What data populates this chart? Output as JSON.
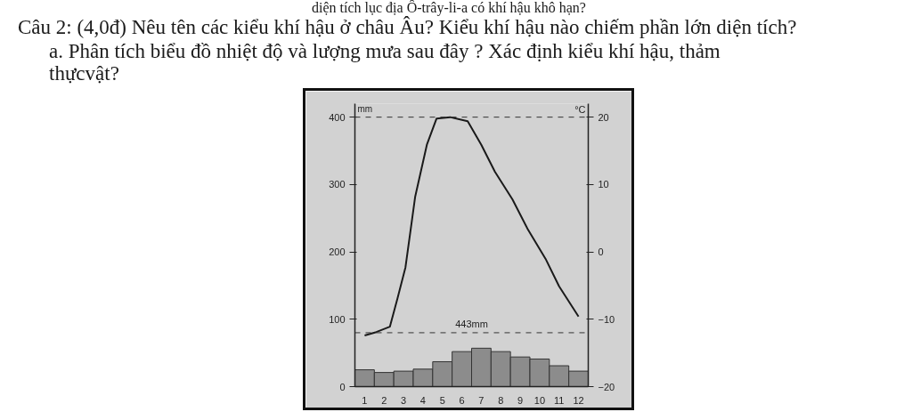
{
  "chart_data": {
    "type": "bar",
    "title": "Câu 2: (4,0đ) Nêu tên các kiểu khí hậu ở châu Âu? Kiểu khí hậu nào chiếm phần lớn diện tích?",
    "subtitle": "a. Phân tích biểu đồ nhiệt độ và lượng mưa sau đây ? Xác định kiểu khí hậu, thảm thựcvật?",
    "annotations": [
      "diện tích lục địa Ô-trây-li-a có khí hậu khô hạn?"
    ],
    "ylabel": "mm",
    "y2label": "°C",
    "x": [
      1,
      2,
      3,
      4,
      5,
      6,
      7,
      8,
      9,
      10,
      11,
      12
    ],
    "xlim": [
      0.5,
      12.5
    ],
    "xticks": [
      1,
      2,
      3,
      4,
      5,
      6,
      7,
      8,
      9,
      10,
      11,
      12
    ],
    "ylim": [
      0,
      420
    ],
    "yticks": [
      0,
      100,
      200,
      300,
      400
    ],
    "y2lim": [
      -20,
      22
    ],
    "y2ticks": [
      -20,
      -10,
      0,
      10,
      20
    ],
    "series": [
      {
        "color": "#8c8c8c",
        "values": [
          25,
          21,
          23,
          26,
          37,
          52,
          57,
          52,
          44,
          41,
          31,
          23
        ]
      },
      {
        "type": "line",
        "axis": "y2",
        "color": "#1a1a1a",
        "x": [
          1,
          1.6,
          2.3,
          2.7,
          3.1,
          3.6,
          4.2,
          4.7,
          5.4,
          6.3,
          7,
          7.7,
          8.6,
          9.4,
          10.3,
          11,
          12
        ],
        "values": [
          -12.4,
          -11.9,
          -11.1,
          -6.8,
          -2.3,
          8.2,
          15.9,
          19.8,
          20,
          19.4,
          15.9,
          11.9,
          7.8,
          3.3,
          -1,
          -5.1,
          -9.6
        ]
      }
    ],
    "ref_lines": [
      {
        "axis": "y2",
        "value": 20,
        "line_style": "dashed"
      },
      {
        "axis": "y2",
        "value": -12,
        "label": "443mm",
        "line_style": "dashed"
      }
    ]
  }
}
